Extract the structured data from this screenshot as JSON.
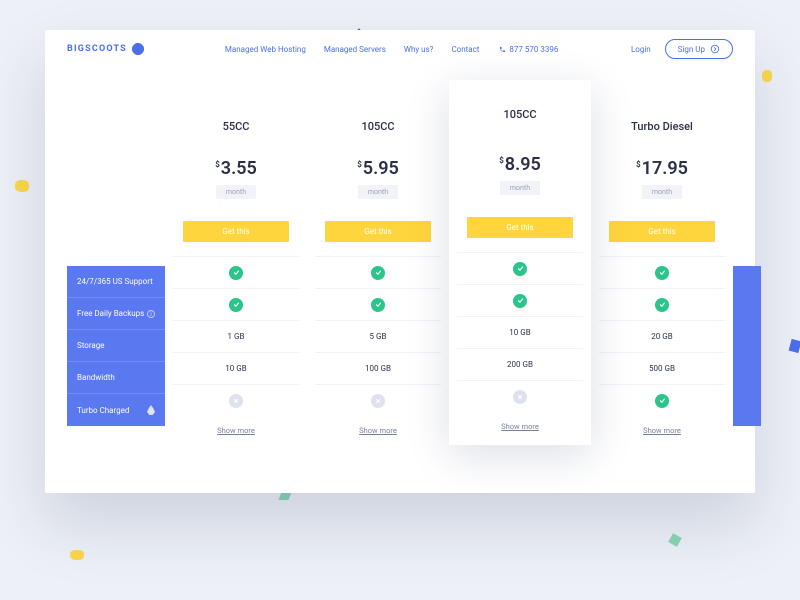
{
  "brand": "BIGSCOOTS",
  "nav": {
    "items": [
      "Managed Web Hosting",
      "Managed Servers",
      "Why us?",
      "Contact"
    ],
    "phone": "877 570 3396",
    "login": "Login",
    "signup": "Sign Up"
  },
  "sidebar": {
    "rows": [
      {
        "label": "24/7/365 US Support",
        "icon": null
      },
      {
        "label": "Free Daily Backups",
        "icon": "info"
      },
      {
        "label": "Storage",
        "icon": null
      },
      {
        "label": "Bandwidth",
        "icon": null
      },
      {
        "label": "Turbo Charged",
        "icon": "flame"
      }
    ]
  },
  "currency": "$",
  "period_label": "month",
  "cta_label": "Get this",
  "show_more_label": "Show more",
  "plans": [
    {
      "name": "55CC",
      "price": "3.55",
      "featured": false,
      "features": [
        "check",
        "check",
        "1 GB",
        "10 GB",
        "cross"
      ]
    },
    {
      "name": "105CC",
      "price": "5.95",
      "featured": false,
      "features": [
        "check",
        "check",
        "5 GB",
        "100 GB",
        "cross"
      ]
    },
    {
      "name": "105CC",
      "price": "8.95",
      "featured": true,
      "features": [
        "check",
        "check",
        "10 GB",
        "200 GB",
        "cross"
      ]
    },
    {
      "name": "Turbo Diesel",
      "price": "17.95",
      "featured": false,
      "features": [
        "check",
        "check",
        "20 GB",
        "500 GB",
        "check"
      ]
    }
  ],
  "colors": {
    "primary": "#4a6fe8",
    "sidebar": "#5a78f0",
    "cta": "#ffd53d",
    "check": "#2bc48a",
    "cross_bg": "#dfe2ee",
    "page_bg": "#edf0f7",
    "text_dark": "#2a2f45",
    "text_muted": "#9aa0b5"
  }
}
